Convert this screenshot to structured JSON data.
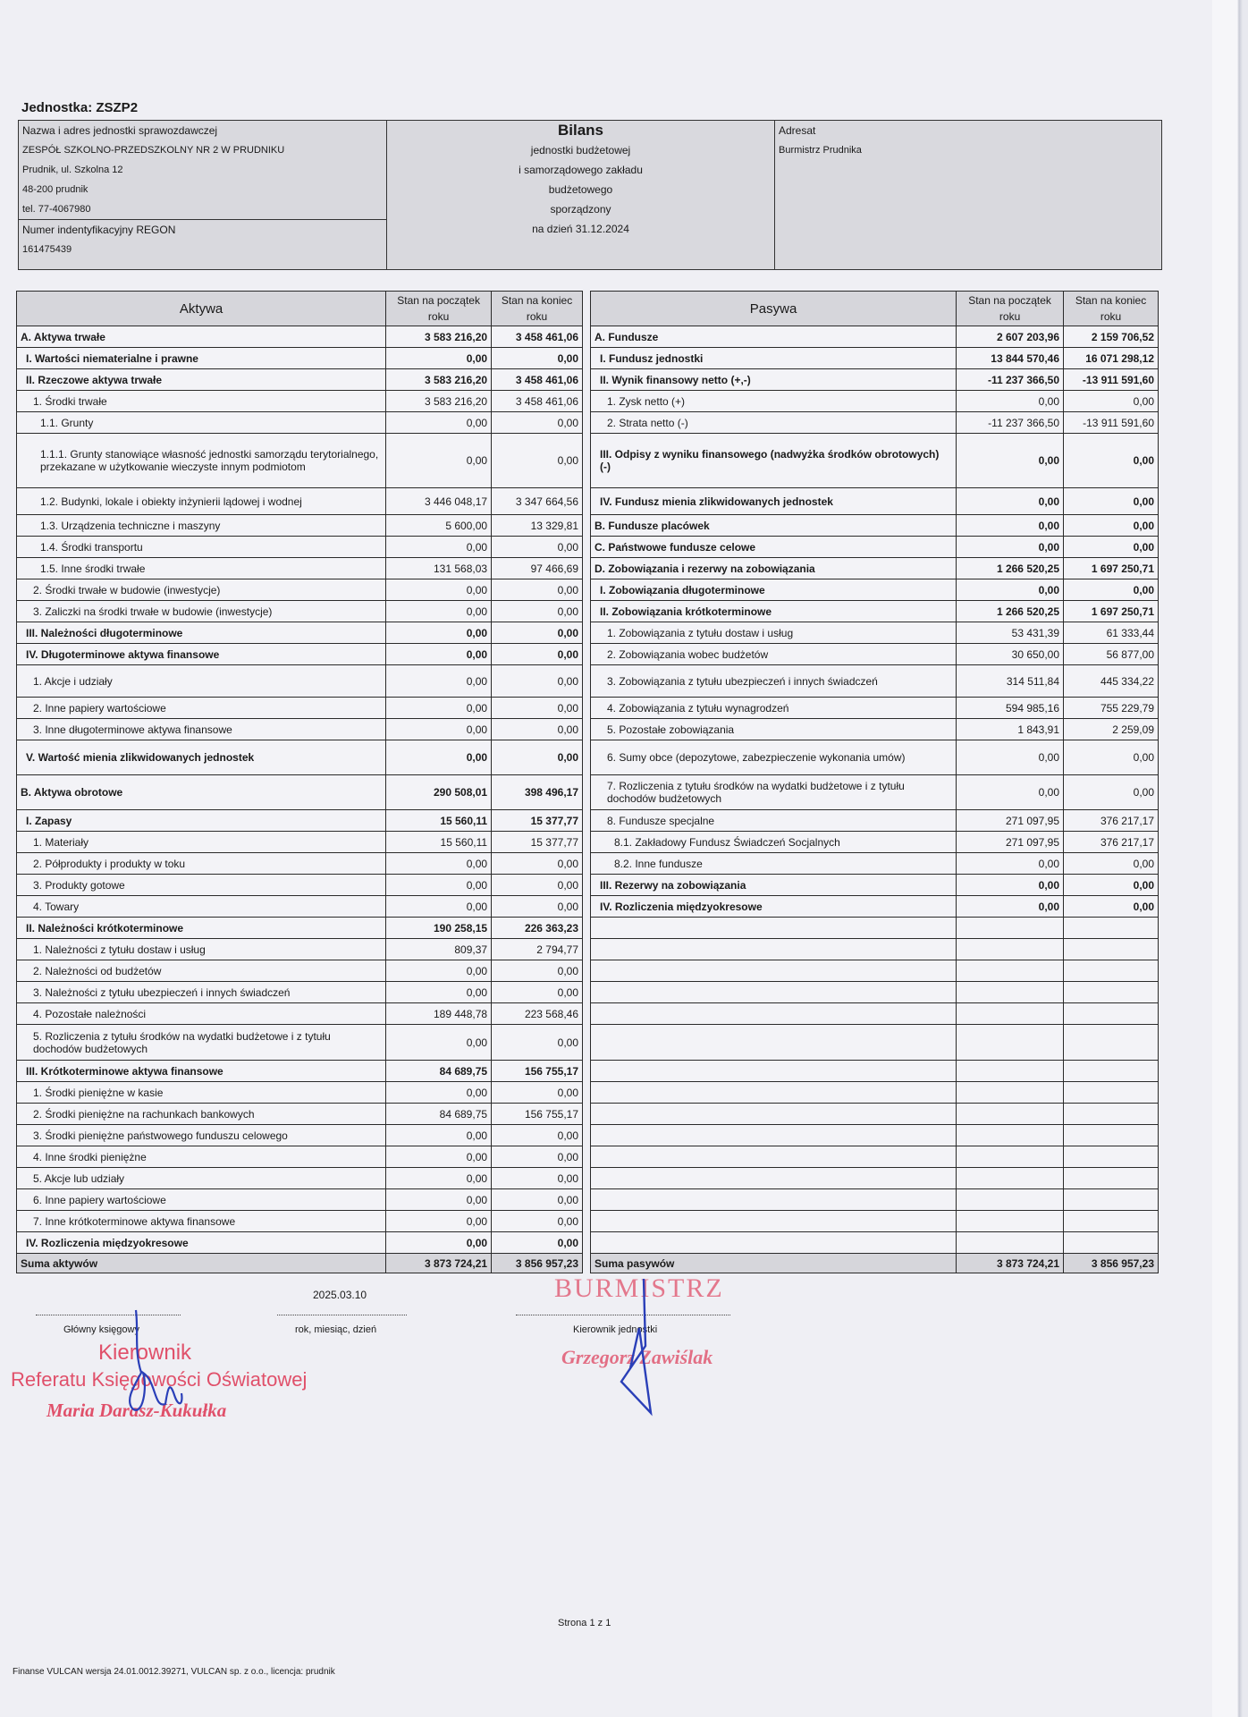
{
  "unit_label": "Jednostka: ZSZP2",
  "header": {
    "left": {
      "name_label": "Nazwa i adres jednostki sprawozdawczej",
      "name": "ZESPÓŁ SZKOLNO-PRZEDSZKOLNY NR 2 W PRUDNIKU",
      "street": "Prudnik, ul. Szkolna 12",
      "postal": "48-200 prudnik",
      "phone": "tel. 77-4067980",
      "regon_label": "Numer indentyfikacyjny REGON",
      "regon": "161475439"
    },
    "middle": {
      "title": "Bilans",
      "lines": [
        "jednostki budżetowej",
        "i samorządowego zakładu",
        "budżetowego",
        "sporządzony",
        "na dzień 31.12.2024"
      ]
    },
    "right": {
      "label": "Adresat",
      "value": "Burmistrz Prudnika"
    }
  },
  "assets": {
    "headers": {
      "label": "Aktywa",
      "start": "Stan na początek roku",
      "end": "Stan na koniec roku"
    },
    "rows": [
      {
        "label": "A. Aktywa trwałe",
        "start": "3 583 216,20",
        "end": "3 458 461,06",
        "level": "section"
      },
      {
        "label": "I. Wartości niematerialne i prawne",
        "start": "0,00",
        "end": "0,00",
        "level": "group"
      },
      {
        "label": "II. Rzeczowe aktywa trwałe",
        "start": "3 583 216,20",
        "end": "3 458 461,06",
        "level": "group"
      },
      {
        "label": "1. Środki trwałe",
        "start": "3 583 216,20",
        "end": "3 458 461,06",
        "level": "item"
      },
      {
        "label": "1.1. Grunty",
        "start": "0,00",
        "end": "0,00",
        "level": "subitem"
      },
      {
        "label": "1.1.1. Grunty stanowiące własność jednostki samorządu terytorialnego, przekazane w użytkowanie wieczyste innym podmiotom",
        "start": "0,00",
        "end": "0,00",
        "level": "subsubitem"
      },
      {
        "label": "1.2. Budynki, lokale i obiekty inżynierii lądowej i wodnej",
        "start": "3 446 048,17",
        "end": "3 347 664,56",
        "level": "subitem"
      },
      {
        "label": "1.3. Urządzenia techniczne i maszyny",
        "start": "5 600,00",
        "end": "13 329,81",
        "level": "subitem"
      },
      {
        "label": "1.4. Środki transportu",
        "start": "0,00",
        "end": "0,00",
        "level": "subitem"
      },
      {
        "label": "1.5. Inne środki trwałe",
        "start": "131 568,03",
        "end": "97 466,69",
        "level": "subitem"
      },
      {
        "label": "2. Środki trwałe w budowie (inwestycje)",
        "start": "0,00",
        "end": "0,00",
        "level": "item"
      },
      {
        "label": "3. Zaliczki na środki trwałe w budowie (inwestycje)",
        "start": "0,00",
        "end": "0,00",
        "level": "item"
      },
      {
        "label": "III. Należności długoterminowe",
        "start": "0,00",
        "end": "0,00",
        "level": "group"
      },
      {
        "label": "IV. Długoterminowe aktywa finansowe",
        "start": "0,00",
        "end": "0,00",
        "level": "group"
      },
      {
        "label": "1. Akcje i udziały",
        "start": "0,00",
        "end": "0,00",
        "level": "item"
      },
      {
        "label": "2. Inne papiery wartościowe",
        "start": "0,00",
        "end": "0,00",
        "level": "item"
      },
      {
        "label": "3. Inne długoterminowe aktywa finansowe",
        "start": "0,00",
        "end": "0,00",
        "level": "item"
      },
      {
        "label": "V. Wartość mienia zlikwidowanych jednostek",
        "start": "0,00",
        "end": "0,00",
        "level": "group"
      },
      {
        "label": "B. Aktywa obrotowe",
        "start": "290 508,01",
        "end": "398 496,17",
        "level": "section"
      },
      {
        "label": "I. Zapasy",
        "start": "15 560,11",
        "end": "15 377,77",
        "level": "group"
      },
      {
        "label": "1. Materiały",
        "start": "15 560,11",
        "end": "15 377,77",
        "level": "item"
      },
      {
        "label": "2. Półprodukty i produkty w toku",
        "start": "0,00",
        "end": "0,00",
        "level": "item"
      },
      {
        "label": "3. Produkty gotowe",
        "start": "0,00",
        "end": "0,00",
        "level": "item"
      },
      {
        "label": "4. Towary",
        "start": "0,00",
        "end": "0,00",
        "level": "item"
      },
      {
        "label": "II. Należności krótkoterminowe",
        "start": "190 258,15",
        "end": "226 363,23",
        "level": "group"
      },
      {
        "label": "1. Należności z tytułu dostaw i usług",
        "start": "809,37",
        "end": "2 794,77",
        "level": "item"
      },
      {
        "label": "2. Należności od budżetów",
        "start": "0,00",
        "end": "0,00",
        "level": "item"
      },
      {
        "label": "3. Należności z tytułu ubezpieczeń i innych świadczeń",
        "start": "0,00",
        "end": "0,00",
        "level": "item"
      },
      {
        "label": "4. Pozostałe należności",
        "start": "189 448,78",
        "end": "223 568,46",
        "level": "item"
      },
      {
        "label": "5. Rozliczenia z tytułu środków na wydatki budżetowe i z tytułu dochodów budżetowych",
        "start": "0,00",
        "end": "0,00",
        "level": "item"
      },
      {
        "label": "III. Krótkoterminowe aktywa finansowe",
        "start": "84 689,75",
        "end": "156 755,17",
        "level": "group"
      },
      {
        "label": "1. Środki pieniężne w kasie",
        "start": "0,00",
        "end": "0,00",
        "level": "item"
      },
      {
        "label": "2. Środki pieniężne na rachunkach bankowych",
        "start": "84 689,75",
        "end": "156 755,17",
        "level": "item"
      },
      {
        "label": "3. Środki pieniężne państwowego funduszu celowego",
        "start": "0,00",
        "end": "0,00",
        "level": "item"
      },
      {
        "label": "4. Inne środki pieniężne",
        "start": "0,00",
        "end": "0,00",
        "level": "item"
      },
      {
        "label": "5. Akcje lub udziały",
        "start": "0,00",
        "end": "0,00",
        "level": "item"
      },
      {
        "label": "6. Inne papiery wartościowe",
        "start": "0,00",
        "end": "0,00",
        "level": "item"
      },
      {
        "label": "7. Inne krótkoterminowe aktywa finansowe",
        "start": "0,00",
        "end": "0,00",
        "level": "item"
      },
      {
        "label": "IV. Rozliczenia międzyokresowe",
        "start": "0,00",
        "end": "0,00",
        "level": "group"
      }
    ],
    "total": {
      "label": "Suma aktywów",
      "start": "3 873 724,21",
      "end": "3 856 957,23"
    }
  },
  "liabilities": {
    "headers": {
      "label": "Pasywa",
      "start": "Stan na początek roku",
      "end": "Stan na koniec roku"
    },
    "rows": [
      {
        "label": "A. Fundusze",
        "start": "2 607 203,96",
        "end": "2 159 706,52",
        "level": "section"
      },
      {
        "label": "I. Fundusz jednostki",
        "start": "13 844 570,46",
        "end": "16 071 298,12",
        "level": "group"
      },
      {
        "label": "II. Wynik finansowy netto (+,-)",
        "start": "-11 237 366,50",
        "end": "-13 911 591,60",
        "level": "group"
      },
      {
        "label": "1. Zysk netto (+)",
        "start": "0,00",
        "end": "0,00",
        "level": "item"
      },
      {
        "label": "2. Strata netto (-)",
        "start": "-11 237 366,50",
        "end": "-13 911 591,60",
        "level": "item"
      },
      {
        "label": "III. Odpisy z wyniku finansowego (nadwyżka środków obrotowych) (-)",
        "start": "0,00",
        "end": "0,00",
        "level": "group"
      },
      {
        "label": "IV. Fundusz mienia zlikwidowanych jednostek",
        "start": "0,00",
        "end": "0,00",
        "level": "group"
      },
      {
        "label": "B. Fundusze placówek",
        "start": "0,00",
        "end": "0,00",
        "level": "section"
      },
      {
        "label": "C. Państwowe fundusze celowe",
        "start": "0,00",
        "end": "0,00",
        "level": "section"
      },
      {
        "label": "D. Zobowiązania i rezerwy na zobowiązania",
        "start": "1 266 520,25",
        "end": "1 697 250,71",
        "level": "section"
      },
      {
        "label": "I. Zobowiązania długoterminowe",
        "start": "0,00",
        "end": "0,00",
        "level": "group"
      },
      {
        "label": "II. Zobowiązania krótkoterminowe",
        "start": "1 266 520,25",
        "end": "1 697 250,71",
        "level": "group"
      },
      {
        "label": "1. Zobowiązania z tytułu dostaw i usług",
        "start": "53 431,39",
        "end": "61 333,44",
        "level": "item"
      },
      {
        "label": "2. Zobowiązania wobec budżetów",
        "start": "30 650,00",
        "end": "56 877,00",
        "level": "item"
      },
      {
        "label": "3. Zobowiązania z tytułu ubezpieczeń i innych świadczeń",
        "start": "314 511,84",
        "end": "445 334,22",
        "level": "item"
      },
      {
        "label": "4. Zobowiązania z tytułu wynagrodzeń",
        "start": "594 985,16",
        "end": "755 229,79",
        "level": "item"
      },
      {
        "label": "5. Pozostałe zobowiązania",
        "start": "1 843,91",
        "end": "2 259,09",
        "level": "item"
      },
      {
        "label": "6. Sumy obce (depozytowe, zabezpieczenie wykonania umów)",
        "start": "0,00",
        "end": "0,00",
        "level": "item"
      },
      {
        "label": "7. Rozliczenia z tytułu środków na wydatki budżetowe i z tytułu dochodów budżetowych",
        "start": "0,00",
        "end": "0,00",
        "level": "item"
      },
      {
        "label": "8. Fundusze specjalne",
        "start": "271 097,95",
        "end": "376 217,17",
        "level": "item"
      },
      {
        "label": "8.1. Zakładowy Fundusz Świadczeń Socjalnych",
        "start": "271 097,95",
        "end": "376 217,17",
        "level": "subitem"
      },
      {
        "label": "8.2. Inne fundusze",
        "start": "0,00",
        "end": "0,00",
        "level": "subitem"
      },
      {
        "label": "III. Rezerwy na zobowiązania",
        "start": "0,00",
        "end": "0,00",
        "level": "group"
      },
      {
        "label": "IV. Rozliczenia międzyokresowe",
        "start": "0,00",
        "end": "0,00",
        "level": "group"
      }
    ],
    "total": {
      "label": "Suma pasywów",
      "start": "3 873 724,21",
      "end": "3 856 957,23"
    }
  },
  "signatures": {
    "date": "2025.03.10",
    "chief_accountant_label": "Główny księgowy",
    "date_label": "rok, miesiąc, dzień",
    "head_label": "Kierownik jednostki",
    "stamp_left": [
      "Kierownik",
      "Referatu Księgowości Oświatowej",
      "Maria Darasz-Kukułka"
    ],
    "stamp_right": [
      "BURMISTRZ",
      "Grzegorz Zawiślak"
    ],
    "stamp_color": "#e0506a",
    "ink_color": "#2a3fb8"
  },
  "footer": {
    "page": "Strona 1 z 1",
    "software": "Finanse VULCAN wersja 24.01.0012.39271, VULCAN sp. z o.o., licencja: prudnik"
  }
}
